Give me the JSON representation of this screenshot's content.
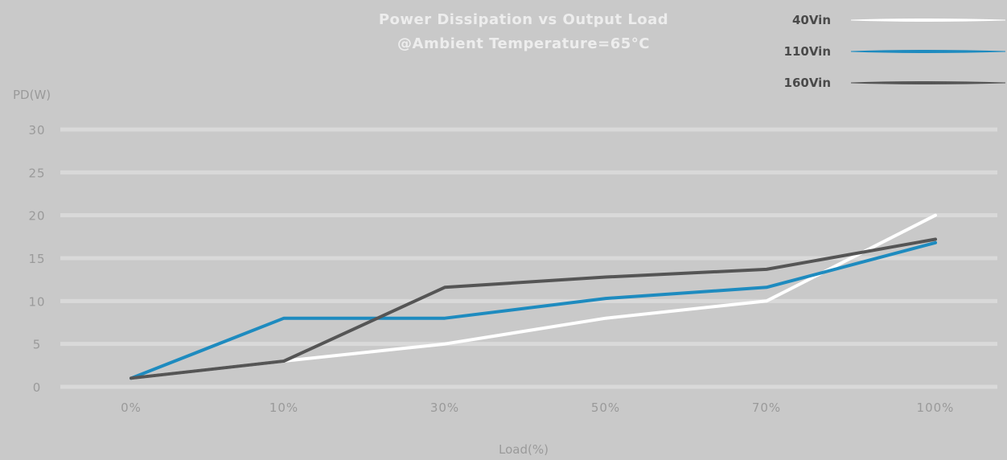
{
  "chart_data": {
    "type": "line",
    "title": "Power Dissipation vs Output Load",
    "subtitle": "@Ambient Temperature=65°C",
    "xlabel": "Load(%)",
    "ylabel": "PD(W)",
    "categories": [
      "0%",
      "10%",
      "30%",
      "50%",
      "70%",
      "100%"
    ],
    "yticks": [
      "0",
      "5",
      "10",
      "15",
      "20",
      "25",
      "30"
    ],
    "ylim": [
      0,
      30
    ],
    "grid": true,
    "legend_position": "top-right",
    "series": [
      {
        "name": "40Vin",
        "color": "#ffffff",
        "values": [
          1,
          3,
          5,
          8,
          10,
          20
        ]
      },
      {
        "name": "110Vin",
        "color": "#1e8bbf",
        "values": [
          1,
          8,
          8,
          10.3,
          11.6,
          16.8
        ]
      },
      {
        "name": "160Vin",
        "color": "#555555",
        "values": [
          1,
          3,
          11.6,
          12.8,
          13.7,
          17.2
        ]
      }
    ]
  }
}
